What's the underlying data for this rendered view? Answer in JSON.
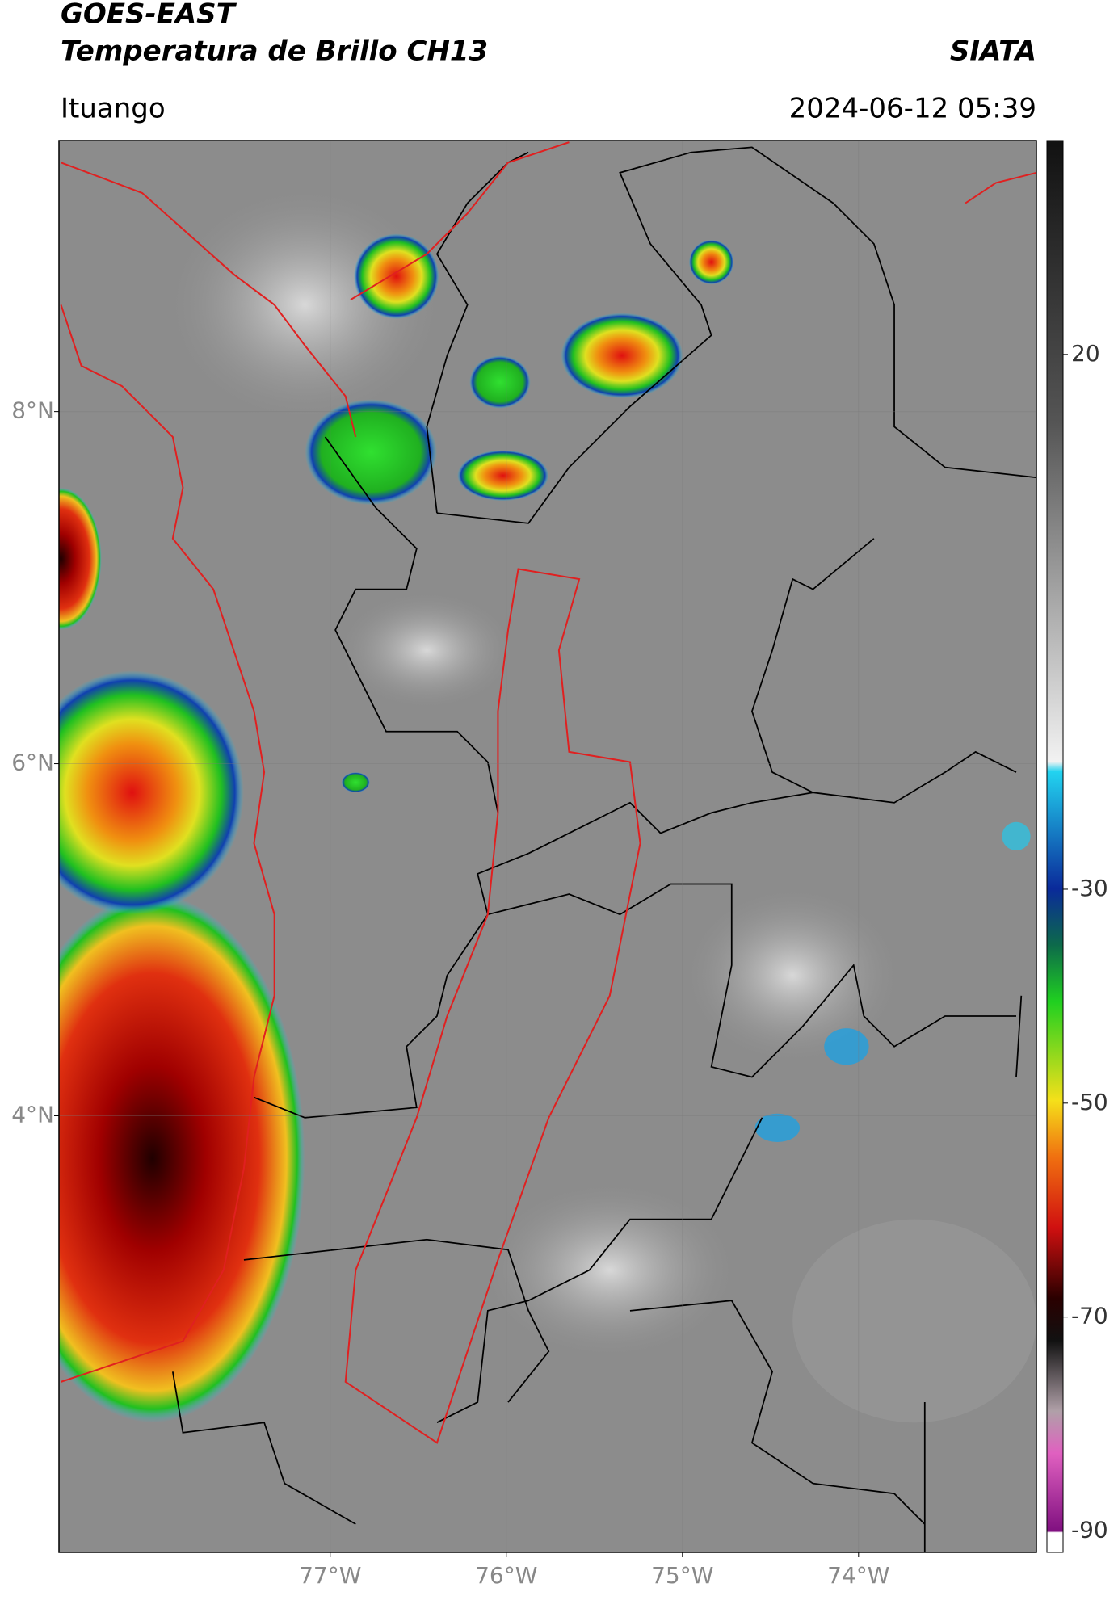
{
  "header": {
    "title": "GOES-EAST",
    "subtitle": "Temperatura de Brillo CH13",
    "source": "SIATA",
    "location": "Ituango",
    "datetime": "2024-06-12 05:39"
  },
  "map": {
    "xlim": [
      -78.54,
      -72.99
    ],
    "ylim": [
      1.52,
      9.54
    ],
    "xticks": [
      {
        "value": -77,
        "label": "77°W"
      },
      {
        "value": -76,
        "label": "76°W"
      },
      {
        "value": -75,
        "label": "75°W"
      },
      {
        "value": -74,
        "label": "74°W"
      }
    ],
    "yticks": [
      {
        "value": 8,
        "label": "8°N"
      },
      {
        "value": 6,
        "label": "6°N"
      },
      {
        "value": 4,
        "label": "4°N"
      }
    ]
  },
  "colorbar": {
    "lim": [
      -92,
      40
    ],
    "ticks": [
      20,
      -30,
      -50,
      -70,
      -90
    ]
  }
}
